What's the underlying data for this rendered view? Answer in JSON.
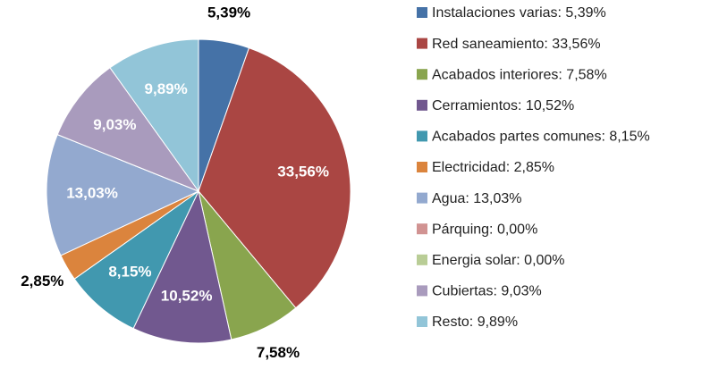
{
  "chart_data": {
    "type": "pie",
    "categories": [
      "Instalaciones varias: 5,39%",
      "Red saneamiento: 33,56%",
      "Acabados interiores: 7,58%",
      "Cerramientos: 10,52%",
      "Acabados partes comunes: 8,15%",
      "Electricidad: 2,85%",
      "Agua: 13,03%",
      "Párquing: 0,00%",
      "Energia solar: 0,00%",
      "Cubiertas: 9,03%",
      "Resto: 9,89%"
    ],
    "values": [
      5.39,
      33.56,
      7.58,
      10.52,
      8.15,
      2.85,
      13.03,
      0,
      0,
      9.03,
      9.89
    ],
    "value_labels": [
      "5,39%",
      "33,56%",
      "7,58%",
      "10,52%",
      "8,15%",
      "2,85%",
      "13,03%",
      null,
      null,
      "9,03%",
      "9,89%"
    ],
    "colors": [
      "#4572a7",
      "#aa4643",
      "#89a54e",
      "#71588f",
      "#4198af",
      "#db843d",
      "#93a9cf",
      "#d19392",
      "#b9cd96",
      "#a99bbd",
      "#92c5d8"
    ],
    "legend": "right"
  }
}
